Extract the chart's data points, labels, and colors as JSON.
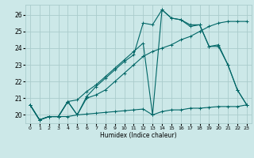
{
  "xlabel": "Humidex (Indice chaleur)",
  "xlim": [
    -0.5,
    23.5
  ],
  "ylim": [
    19.5,
    26.6
  ],
  "xticks": [
    0,
    1,
    2,
    3,
    4,
    5,
    6,
    7,
    8,
    9,
    10,
    11,
    12,
    13,
    14,
    15,
    16,
    17,
    18,
    19,
    20,
    21,
    22,
    23
  ],
  "yticks": [
    20,
    21,
    22,
    23,
    24,
    25,
    26
  ],
  "bg_color": "#cce8e8",
  "grid_color": "#aacccc",
  "line_color": "#006666",
  "lines": [
    {
      "x": [
        0,
        1,
        2,
        3,
        4,
        5,
        6,
        7,
        8,
        9,
        10,
        11,
        12,
        13,
        14,
        15,
        16,
        17,
        18,
        19,
        20,
        21,
        22,
        23
      ],
      "y": [
        20.6,
        19.7,
        19.9,
        19.9,
        19.9,
        20.0,
        20.05,
        20.1,
        20.15,
        20.2,
        20.25,
        20.3,
        20.35,
        20.0,
        20.2,
        20.3,
        20.3,
        20.4,
        20.4,
        20.45,
        20.5,
        20.5,
        20.5,
        20.6
      ]
    },
    {
      "x": [
        0,
        1,
        2,
        3,
        4,
        5,
        6,
        7,
        8,
        9,
        10,
        11,
        12,
        13,
        14,
        15,
        16,
        17,
        18,
        19,
        20,
        21,
        22,
        23
      ],
      "y": [
        20.6,
        19.7,
        19.9,
        19.9,
        20.8,
        20.9,
        21.4,
        21.8,
        22.3,
        22.8,
        23.3,
        23.8,
        24.3,
        20.0,
        26.3,
        25.8,
        25.7,
        25.4,
        25.4,
        24.1,
        24.1,
        23.0,
        21.5,
        20.6
      ]
    },
    {
      "x": [
        0,
        1,
        2,
        3,
        4,
        5,
        6,
        7,
        8,
        9,
        10,
        11,
        12,
        13,
        14,
        15,
        16,
        17,
        18,
        19,
        20,
        21,
        22,
        23
      ],
      "y": [
        20.6,
        19.7,
        19.9,
        19.9,
        20.8,
        20.0,
        21.1,
        21.7,
        22.2,
        22.7,
        23.2,
        23.6,
        25.5,
        25.4,
        26.3,
        25.8,
        25.7,
        25.3,
        25.4,
        24.1,
        24.2,
        23.0,
        21.5,
        20.6
      ]
    },
    {
      "x": [
        0,
        1,
        2,
        3,
        4,
        5,
        6,
        7,
        8,
        9,
        10,
        11,
        12,
        13,
        14,
        15,
        16,
        17,
        18,
        19,
        20,
        21,
        22,
        23
      ],
      "y": [
        20.6,
        19.7,
        19.9,
        19.9,
        20.8,
        20.0,
        21.0,
        21.2,
        21.5,
        22.0,
        22.5,
        23.0,
        23.5,
        23.8,
        24.0,
        24.2,
        24.5,
        24.7,
        25.0,
        25.3,
        25.5,
        25.6,
        25.6,
        25.6
      ]
    }
  ]
}
